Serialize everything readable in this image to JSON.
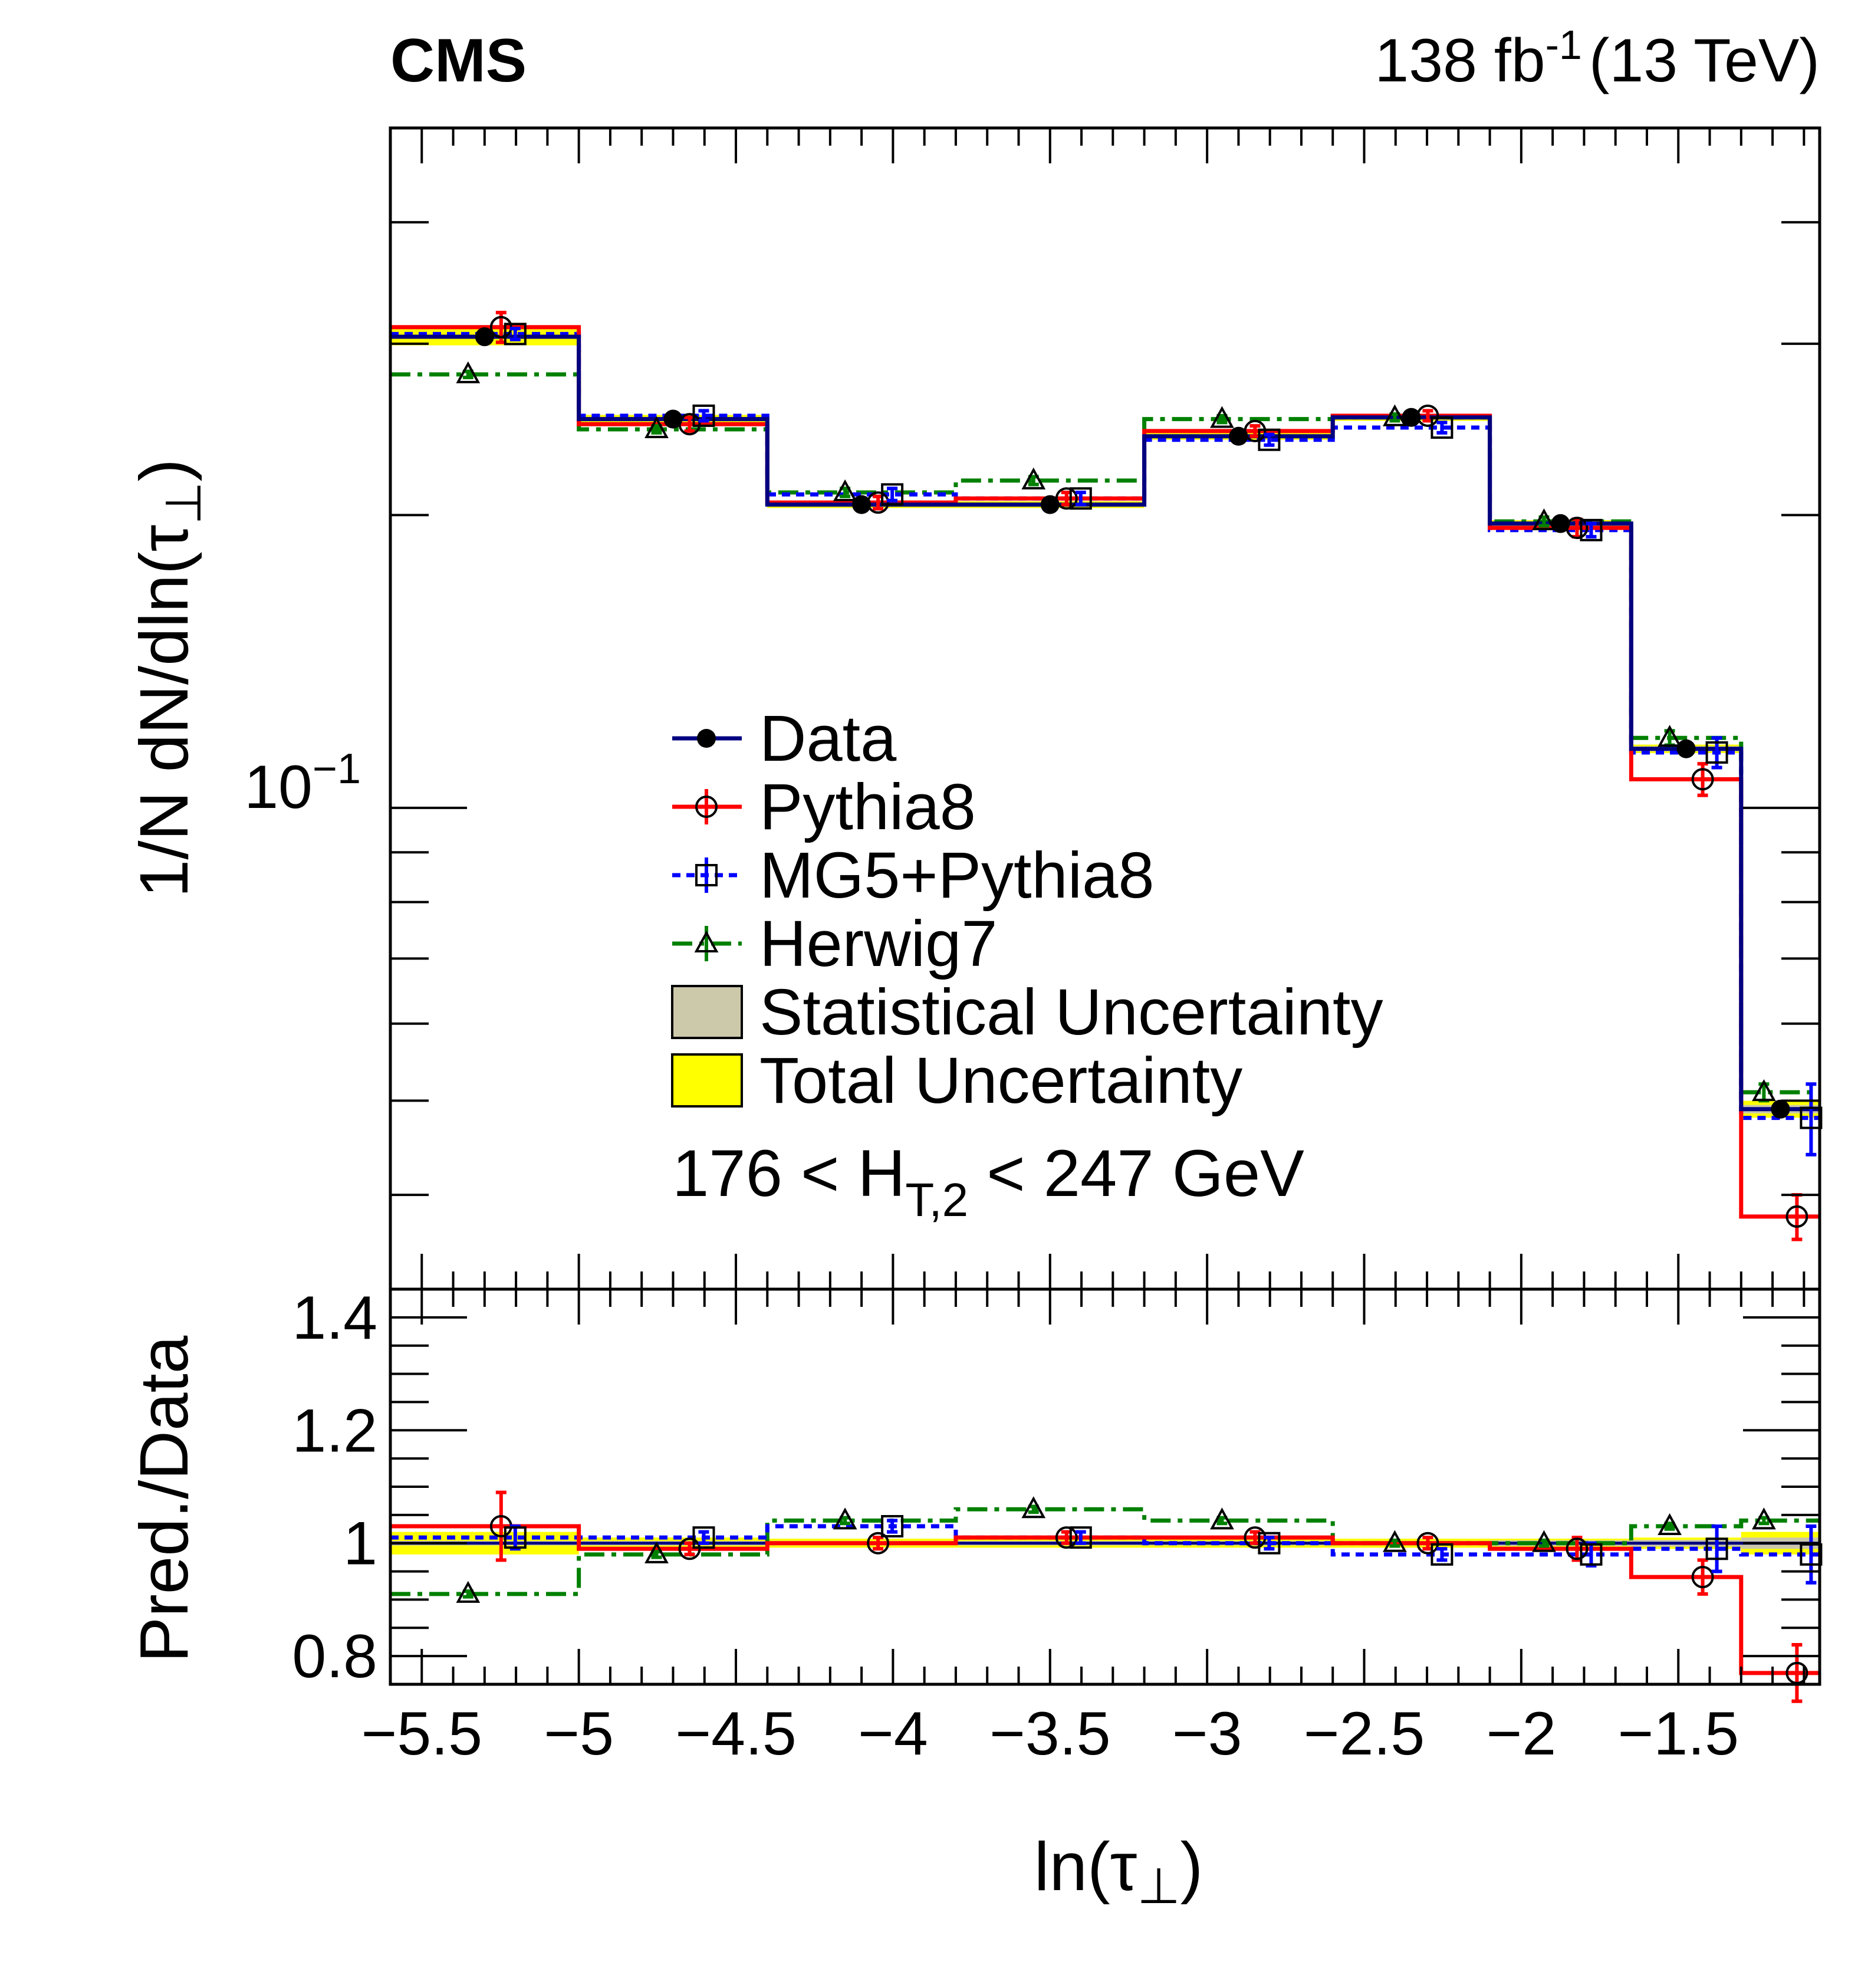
{
  "experiment_label": "CMS",
  "lumi_label": {
    "prefix": "138 fb",
    "exponent": "-1",
    "suffix": "(13 TeV)"
  },
  "colors": {
    "data": "#000000",
    "data_line": "#000080",
    "pythia8": "#ff0000",
    "mg5": "#0000ff",
    "herwig7": "#008000",
    "stat_band": "#ccc8aa",
    "total_band": "#ffff00"
  },
  "chart_data": {
    "type": "line",
    "xlabel": "ln(τ⊥)",
    "ylabel_main": "1/N dN/dln(τ⊥)",
    "ylabel_ratio": "Pred./Data",
    "bin_edges": [
      -5.6,
      -5.0,
      -4.4,
      -3.8,
      -3.2,
      -2.6,
      -2.1,
      -1.65,
      -1.3,
      -1.05
    ],
    "bin_centers": [
      -5.3,
      -4.7,
      -4.1,
      -3.5,
      -2.9,
      -2.35,
      -1.875,
      -1.475,
      -1.175
    ],
    "x_ticks": [
      "−5.5",
      "−5",
      "−4.5",
      "−4",
      "−3.5",
      "−3",
      "−2.5",
      "−2",
      "−1.5"
    ],
    "x_tick_values": [
      -5.5,
      -5.0,
      -4.5,
      -4.0,
      -3.5,
      -3.0,
      -2.5,
      -2.0,
      -1.5
    ],
    "main_yscale": "log",
    "main_ylim": [
      0.032,
      0.5
    ],
    "main_ylabel_tick": {
      "base": "10",
      "exponent": "−1",
      "value": 0.1
    },
    "ratio_ylim": [
      0.75,
      1.45
    ],
    "ratio_ticks": [
      "0.8",
      "1",
      "1.2",
      "1.4"
    ],
    "ratio_tick_values": [
      0.8,
      1.0,
      1.2,
      1.4
    ],
    "annotation": "176 < H_{T,2} < 247 GeV",
    "annotation_parts": {
      "pre": "176 < H",
      "sub": "T,2",
      "post": " < 247 GeV"
    },
    "legend": [
      {
        "key": "data",
        "label": "Data"
      },
      {
        "key": "pythia8",
        "label": "Pythia8"
      },
      {
        "key": "mg5",
        "label": "MG5+Pythia8"
      },
      {
        "key": "herwig7",
        "label": "Herwig7"
      },
      {
        "key": "stat",
        "label": "Statistical Uncertainty"
      },
      {
        "key": "total",
        "label": "Total Uncertainty"
      }
    ],
    "series": [
      {
        "name": "Data",
        "key": "data",
        "values": [
          0.305,
          0.251,
          0.205,
          0.205,
          0.241,
          0.252,
          0.196,
          0.115,
          0.049
        ],
        "stat_rel": [
          0.004,
          0.004,
          0.004,
          0.004,
          0.004,
          0.004,
          0.005,
          0.006,
          0.01
        ],
        "total_rel": [
          0.02,
          0.01,
          0.008,
          0.008,
          0.008,
          0.008,
          0.008,
          0.01,
          0.02
        ]
      },
      {
        "name": "Pythia8",
        "key": "pythia8",
        "values": [
          0.312,
          0.248,
          0.206,
          0.208,
          0.244,
          0.253,
          0.194,
          0.107,
          0.038
        ],
        "err": [
          0.011,
          0.004,
          0.003,
          0.003,
          0.003,
          0.003,
          0.004,
          0.004,
          0.002
        ]
      },
      {
        "name": "MG5+Pythia8",
        "key": "mg5",
        "values": [
          0.307,
          0.253,
          0.21,
          0.208,
          0.239,
          0.246,
          0.193,
          0.114,
          0.048
        ],
        "err": [
          0.004,
          0.003,
          0.003,
          0.003,
          0.003,
          0.003,
          0.003,
          0.004,
          0.004
        ]
      },
      {
        "name": "Herwig7",
        "key": "herwig7",
        "values": [
          0.279,
          0.245,
          0.211,
          0.217,
          0.251,
          0.252,
          0.197,
          0.118,
          0.051
        ],
        "err": [
          0.002,
          0.002,
          0.002,
          0.002,
          0.002,
          0.002,
          0.002,
          0.002,
          0.001
        ]
      }
    ],
    "ratio_series": [
      {
        "name": "Pythia8",
        "key": "pythia8",
        "values": [
          1.03,
          0.99,
          1.0,
          1.01,
          1.01,
          1.0,
          0.99,
          0.94,
          0.77
        ],
        "err": [
          0.06,
          0.01,
          0.01,
          0.01,
          0.01,
          0.01,
          0.02,
          0.03,
          0.05
        ]
      },
      {
        "name": "MG5+Pythia8",
        "key": "mg5",
        "values": [
          1.01,
          1.01,
          1.03,
          1.01,
          1.0,
          0.98,
          0.98,
          0.99,
          0.98
        ],
        "err": [
          0.02,
          0.01,
          0.01,
          0.01,
          0.01,
          0.01,
          0.02,
          0.04,
          0.05
        ]
      },
      {
        "name": "Herwig7",
        "key": "herwig7",
        "values": [
          0.91,
          0.98,
          1.04,
          1.06,
          1.04,
          1.0,
          1.0,
          1.03,
          1.04
        ],
        "err": [
          0.005,
          0.005,
          0.005,
          0.005,
          0.005,
          0.005,
          0.005,
          0.005,
          0.005
        ]
      }
    ]
  }
}
